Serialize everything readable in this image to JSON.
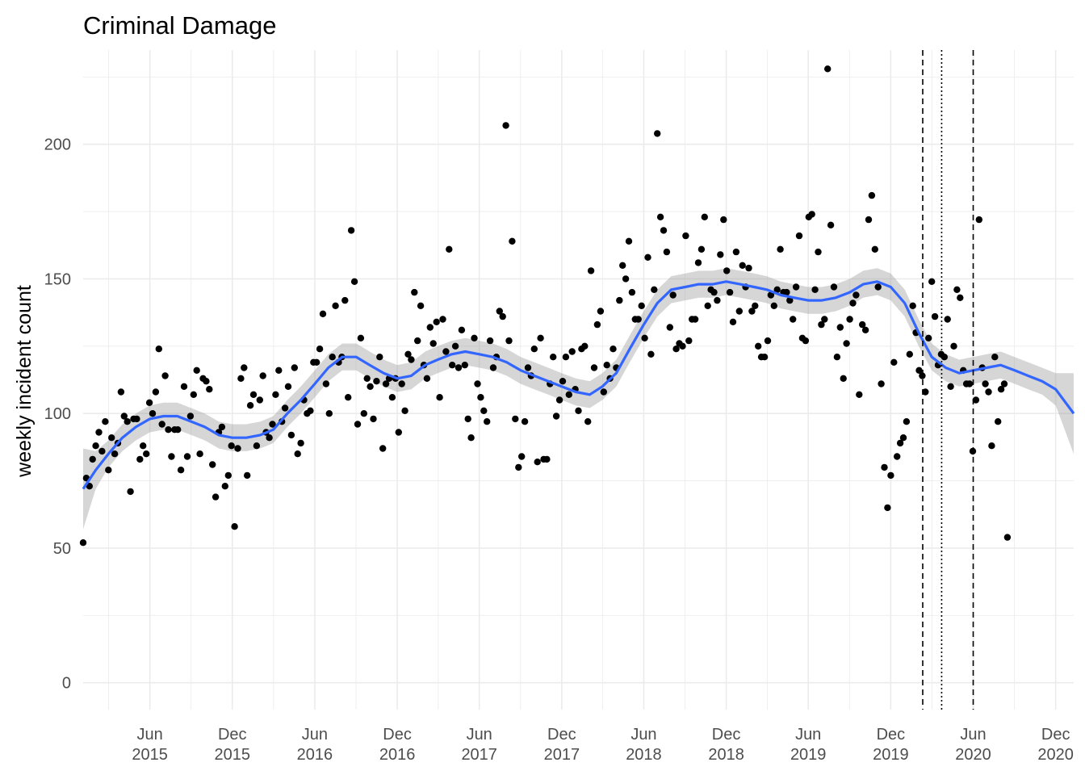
{
  "chart_data": {
    "type": "scatter",
    "title": "Criminal Damage",
    "xlabel": "",
    "ylabel": "weekly incident count",
    "ylim": [
      -10,
      235
    ],
    "xlim": [
      "2015-01-04",
      "2021-01-10"
    ],
    "yticks": [
      0,
      50,
      100,
      150,
      200
    ],
    "xticks": [
      {
        "date": "2015-06-01",
        "label": [
          "Jun",
          "2015"
        ]
      },
      {
        "date": "2015-12-01",
        "label": [
          "Dec",
          "2015"
        ]
      },
      {
        "date": "2016-06-01",
        "label": [
          "Jun",
          "2016"
        ]
      },
      {
        "date": "2016-12-01",
        "label": [
          "Dec",
          "2016"
        ]
      },
      {
        "date": "2017-06-01",
        "label": [
          "Jun",
          "2017"
        ]
      },
      {
        "date": "2017-12-01",
        "label": [
          "Dec",
          "2017"
        ]
      },
      {
        "date": "2018-06-01",
        "label": [
          "Jun",
          "2018"
        ]
      },
      {
        "date": "2018-12-01",
        "label": [
          "Dec",
          "2018"
        ]
      },
      {
        "date": "2019-06-01",
        "label": [
          "Jun",
          "2019"
        ]
      },
      {
        "date": "2019-12-01",
        "label": [
          "Dec",
          "2019"
        ]
      },
      {
        "date": "2020-06-01",
        "label": [
          "Jun",
          "2020"
        ]
      },
      {
        "date": "2020-12-01",
        "label": [
          "Dec",
          "2020"
        ]
      }
    ],
    "grid": true,
    "vlines": [
      {
        "date": "2020-02-10",
        "style": "dashed"
      },
      {
        "date": "2020-03-23",
        "style": "dotted"
      },
      {
        "date": "2020-06-01",
        "style": "dashed"
      }
    ],
    "points": {
      "color": "#000000",
      "start": "2015-01-04",
      "interval_days": 7,
      "y": [
        52,
        76,
        73,
        83,
        88,
        93,
        86,
        97,
        79,
        91,
        85,
        89,
        108,
        99,
        97,
        71,
        98,
        98,
        83,
        88,
        85,
        104,
        100,
        108,
        124,
        96,
        114,
        94,
        84,
        94,
        94,
        79,
        110,
        84,
        99,
        107,
        116,
        85,
        113,
        112,
        109,
        81,
        69,
        93,
        95,
        73,
        77,
        88,
        58,
        87,
        113,
        117,
        77,
        103,
        107,
        88,
        105,
        114,
        93,
        91,
        96,
        107,
        116,
        97,
        102,
        110,
        92,
        117,
        85,
        89,
        105,
        100,
        101,
        119,
        119,
        124,
        137,
        111,
        100,
        121,
        140,
        119,
        121,
        142,
        106,
        168,
        149,
        96,
        128,
        100,
        113,
        110,
        98,
        112,
        121,
        87,
        111,
        113,
        106,
        113,
        93,
        111,
        101,
        122,
        120,
        145,
        127,
        140,
        118,
        113,
        132,
        126,
        134,
        106,
        135,
        123,
        161,
        118,
        125,
        117,
        131,
        118,
        98,
        91,
        128,
        111,
        106,
        101,
        97,
        127,
        117,
        121,
        138,
        136,
        207,
        127,
        164,
        98,
        80,
        84,
        97,
        117,
        114,
        124,
        82,
        128,
        83,
        83,
        111,
        121,
        99,
        105,
        112,
        121,
        107,
        123,
        109,
        101,
        124,
        125,
        97,
        153,
        117,
        133,
        138,
        108,
        118,
        113,
        124,
        117,
        142,
        155,
        150,
        164,
        145,
        135,
        135,
        140,
        128,
        158,
        122,
        146,
        204,
        173,
        168,
        160,
        132,
        144,
        124,
        126,
        125,
        166,
        127,
        135,
        135,
        156,
        161,
        173,
        140,
        146,
        145,
        142,
        159,
        172,
        153,
        145,
        134,
        160,
        138,
        155,
        147,
        154,
        138,
        140,
        125,
        121,
        121,
        127,
        144,
        140,
        146,
        161,
        145,
        145,
        142,
        135,
        147,
        166,
        128,
        127,
        173,
        174,
        146,
        160,
        133,
        135,
        228,
        170,
        147,
        121,
        132,
        113,
        126,
        135,
        141,
        144,
        107,
        133,
        131,
        172,
        181,
        161,
        147,
        111,
        80,
        65,
        77,
        119,
        84,
        89,
        91,
        97,
        122,
        140,
        130,
        116,
        114,
        108,
        128,
        149,
        136,
        118,
        122,
        121,
        135,
        110,
        125,
        146,
        143,
        116,
        111,
        111,
        86,
        105,
        172,
        117,
        111,
        108,
        88,
        121,
        97,
        109,
        111,
        54
      ]
    },
    "smooth": {
      "name": "loess",
      "color": "#3366ff",
      "band_color": "#999999",
      "x": [
        "2015-01-04",
        "2015-02-01",
        "2015-03-01",
        "2015-04-01",
        "2015-05-01",
        "2015-06-01",
        "2015-07-01",
        "2015-08-01",
        "2015-09-01",
        "2015-10-01",
        "2015-11-01",
        "2015-12-01",
        "2016-01-01",
        "2016-02-01",
        "2016-03-01",
        "2016-04-01",
        "2016-05-01",
        "2016-06-01",
        "2016-07-01",
        "2016-08-01",
        "2016-09-01",
        "2016-10-01",
        "2016-11-01",
        "2016-12-01",
        "2017-01-01",
        "2017-02-01",
        "2017-03-01",
        "2017-04-01",
        "2017-05-01",
        "2017-06-01",
        "2017-07-01",
        "2017-08-01",
        "2017-09-01",
        "2017-10-01",
        "2017-11-01",
        "2017-12-01",
        "2018-01-01",
        "2018-02-01",
        "2018-03-01",
        "2018-04-01",
        "2018-05-01",
        "2018-06-01",
        "2018-07-01",
        "2018-08-01",
        "2018-09-01",
        "2018-10-01",
        "2018-11-01",
        "2018-12-01",
        "2019-01-01",
        "2019-02-01",
        "2019-03-01",
        "2019-04-01",
        "2019-05-01",
        "2019-06-01",
        "2019-07-01",
        "2019-08-01",
        "2019-09-01",
        "2019-10-01",
        "2019-11-01",
        "2019-12-01",
        "2020-01-01",
        "2020-02-01",
        "2020-03-01",
        "2020-04-01",
        "2020-05-01",
        "2020-06-01",
        "2020-07-01",
        "2020-08-01",
        "2020-09-01",
        "2020-10-01",
        "2020-11-01",
        "2020-12-01",
        "2021-01-10"
      ],
      "y": [
        72,
        79,
        85,
        91,
        95,
        98,
        99,
        99,
        97,
        95,
        92,
        91,
        91,
        92,
        94,
        100,
        105,
        111,
        117,
        121,
        121,
        118,
        115,
        113,
        114,
        118,
        120,
        122,
        123,
        122,
        121,
        119,
        116,
        114,
        112,
        110,
        108,
        107,
        110,
        115,
        124,
        133,
        141,
        146,
        147,
        148,
        148,
        149,
        148,
        147,
        146,
        144,
        143,
        142,
        142,
        143,
        145,
        148,
        149,
        147,
        141,
        130,
        121,
        117,
        115,
        116,
        117,
        118,
        116,
        114,
        112,
        109,
        100
      ],
      "lower": [
        57,
        72,
        80,
        86,
        90,
        93,
        94,
        94,
        92,
        90,
        87,
        86,
        86,
        87,
        89,
        95,
        100,
        106,
        112,
        116,
        116,
        113,
        110,
        108,
        109,
        113,
        115,
        117,
        118,
        117,
        116,
        114,
        111,
        109,
        107,
        105,
        103,
        102,
        105,
        110,
        119,
        128,
        136,
        141,
        142,
        143,
        143,
        144,
        143,
        142,
        141,
        139,
        138,
        137,
        137,
        138,
        140,
        143,
        144,
        142,
        136,
        125,
        116,
        112,
        110,
        111,
        112,
        113,
        111,
        109,
        107,
        103,
        85
      ],
      "upper": [
        87,
        86,
        90,
        96,
        100,
        103,
        104,
        104,
        102,
        100,
        97,
        96,
        96,
        97,
        99,
        105,
        110,
        116,
        122,
        126,
        126,
        123,
        120,
        118,
        119,
        123,
        125,
        127,
        128,
        127,
        126,
        124,
        121,
        119,
        117,
        115,
        113,
        112,
        115,
        120,
        129,
        138,
        146,
        151,
        152,
        153,
        153,
        154,
        153,
        152,
        151,
        149,
        148,
        147,
        147,
        148,
        150,
        153,
        154,
        152,
        146,
        135,
        126,
        122,
        120,
        121,
        122,
        123,
        121,
        119,
        117,
        115,
        115
      ]
    }
  }
}
